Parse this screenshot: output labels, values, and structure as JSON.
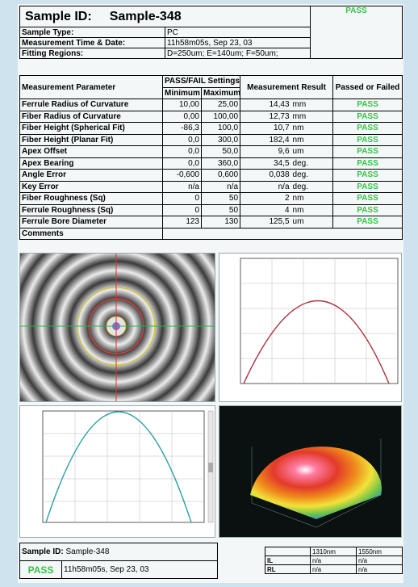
{
  "header": {
    "sample_id_label": "Sample ID:",
    "sample_id": "Sample-348",
    "status": "PASS",
    "rows": [
      {
        "label": "Sample Type:",
        "value": "PC"
      },
      {
        "label": "Measurement Time & Date:",
        "value": "11h58m05s, Sep 23, 03"
      },
      {
        "label": "Fitting Regions:",
        "value": "D=250um;  E=140um;  F=50um;"
      }
    ]
  },
  "table": {
    "col_param": "Measurement Parameter",
    "col_settings": "PASS/FAIL Settings",
    "col_min": "Minimum",
    "col_max": "Maximum",
    "col_result": "Measurement Result",
    "col_passed": "Passed or Failed",
    "rows": [
      {
        "param": "Ferrule Radius of Curvature",
        "min": "10,00",
        "max": "25,00",
        "value": "14,43",
        "unit": "mm",
        "result": "PASS"
      },
      {
        "param": "Fiber Radius of Curvature",
        "min": "0,00",
        "max": "100,00",
        "value": "12,73",
        "unit": "mm",
        "result": "PASS"
      },
      {
        "param": "Fiber Height (Spherical Fit)",
        "min": "-86,3",
        "max": "100,0",
        "value": "10,7",
        "unit": "nm",
        "result": "PASS"
      },
      {
        "param": "Fiber Height (Planar Fit)",
        "min": "0,0",
        "max": "300,0",
        "value": "182,4",
        "unit": "nm",
        "result": "PASS"
      },
      {
        "param": "Apex Offset",
        "min": "0,0",
        "max": "50,0",
        "value": "9,6",
        "unit": "um",
        "result": "PASS"
      },
      {
        "param": "Apex Bearing",
        "min": "0,0",
        "max": "360,0",
        "value": "34,5",
        "unit": "deg.",
        "result": "PASS"
      },
      {
        "param": "Angle Error",
        "min": "-0,600",
        "max": "0,600",
        "value": "0,038",
        "unit": "deg.",
        "result": "PASS"
      },
      {
        "param": "Key Error",
        "min": "n/a",
        "max": "n/a",
        "value": "n/a",
        "unit": "deg.",
        "result": "PASS"
      },
      {
        "param": "Fiber Roughness (Sq)",
        "min": "0",
        "max": "50",
        "value": "2",
        "unit": "nm",
        "result": "PASS"
      },
      {
        "param": "Ferrule Roughness (Sq)",
        "min": "0",
        "max": "50",
        "value": "4",
        "unit": "nm",
        "result": "PASS"
      },
      {
        "param": "Ferrule Bore Diameter",
        "min": "123",
        "max": "130",
        "value": "125,5",
        "unit": "um",
        "result": "PASS"
      }
    ],
    "comments_label": "Comments"
  },
  "footer": {
    "sample_id_label": "Sample ID:",
    "sample_id": "Sample-348",
    "status": "PASS",
    "timestamp": "11h58m05s, Sep 23, 03",
    "wl1": "1310nm",
    "wl2": "1550nm",
    "il_label": "IL",
    "rl_label": "RL",
    "na": "n/a"
  },
  "colors": {
    "pass": "#38c24a",
    "curve1": "#b0303c",
    "curve2": "#2aa0a8"
  }
}
